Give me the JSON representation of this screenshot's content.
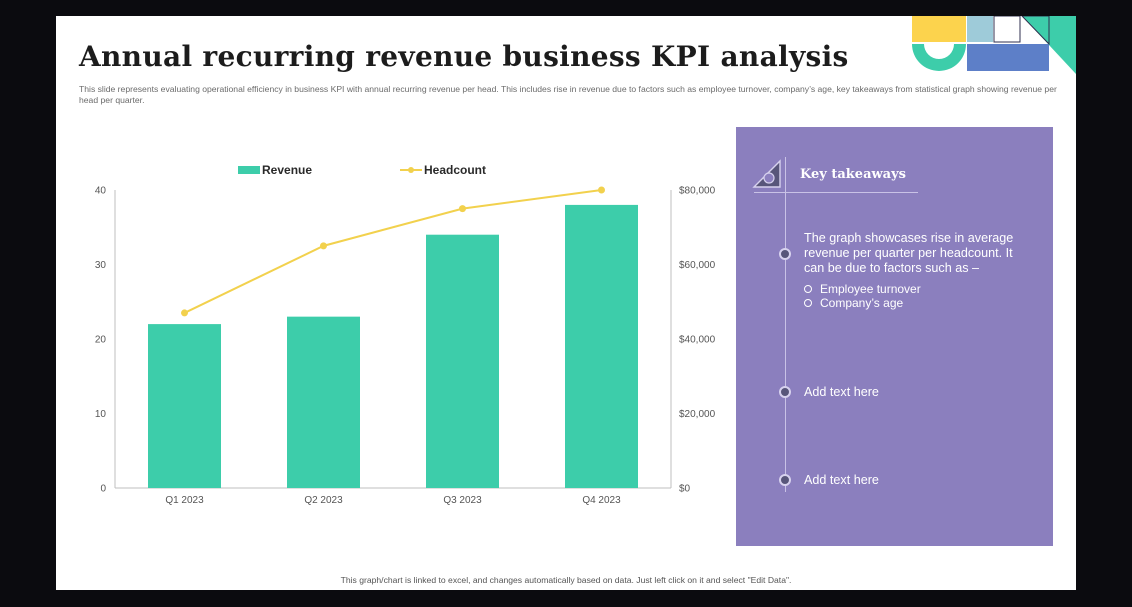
{
  "slide": {
    "title": "Annual recurring revenue business KPI analysis",
    "description": "This slide represents evaluating operational efficiency in business KPI with annual recurring revenue per head. This includes rise in revenue due to factors such as employee turnover, company’s age, key takeaways from statistical graph showing revenue per head per quarter.",
    "footnote": "This graph/chart is linked to excel, and changes automatically based on data. Just left click on it and select \"Edit Data\"."
  },
  "colors": {
    "revenue_bar": "#3dcdaa",
    "headcount_line": "#f2d14d",
    "panel_bg": "#8b7fbe",
    "deco_yellow": "#fcd34d",
    "deco_teal": "#3dcdaa",
    "deco_blue": "#5d7fc8",
    "deco_lightblue": "#9ecbd9"
  },
  "chart_data": {
    "type": "bar",
    "categories": [
      "Q1 2023",
      "Q2 2023",
      "Q3 2023",
      "Q4 2023"
    ],
    "series": [
      {
        "name": "Revenue",
        "type": "bar",
        "axis": "left",
        "values": [
          22,
          23,
          34,
          38
        ]
      },
      {
        "name": "Headcount",
        "type": "line",
        "axis": "right",
        "values": [
          47000,
          65000,
          75000,
          80000
        ]
      }
    ],
    "ylim_left": [
      0,
      40
    ],
    "yticks_left": [
      "0",
      "10",
      "20",
      "30",
      "40"
    ],
    "ylim_right": [
      0,
      80000
    ],
    "yticks_right": [
      "$0",
      "$20,000",
      "$40,000",
      "$60,000",
      "$80,000"
    ],
    "legend": {
      "placement": "top",
      "entries": [
        "Revenue",
        "Headcount"
      ]
    },
    "grid": false
  },
  "takeaways": {
    "title": "Key takeaways",
    "icon": "set-square-icon",
    "items": [
      {
        "text": "The graph showcases rise in average revenue per quarter per headcount. It can be due to factors such as –",
        "subitems": [
          "Employee turnover",
          "Company’s age"
        ]
      },
      {
        "text": "Add text here"
      },
      {
        "text": "Add text here"
      }
    ]
  }
}
